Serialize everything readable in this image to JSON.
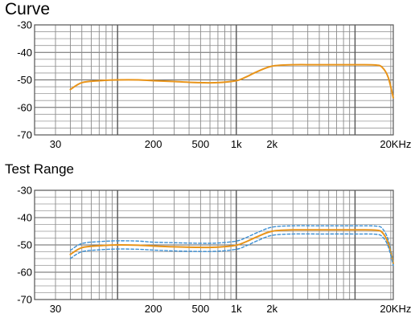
{
  "chart_data": [
    {
      "type": "line",
      "title": "Curve",
      "xscale": "log",
      "xlim": [
        20,
        21000
      ],
      "ylim": [
        -70,
        -30
      ],
      "yticks": [
        -30,
        -40,
        -50,
        -60,
        -70
      ],
      "ytick_labels": [
        "-30",
        "-40",
        "-50",
        "-60",
        "-70"
      ],
      "xticks": [
        30,
        200,
        500,
        1000,
        2000,
        20000
      ],
      "xtick_labels": [
        "30",
        "200",
        "500",
        "1k",
        "2k",
        "20KHz"
      ],
      "grid": true,
      "series": [
        {
          "color": "#e8941a",
          "style": "solid",
          "x": [
            40,
            50,
            70,
            100,
            150,
            200,
            300,
            500,
            700,
            1000,
            1200,
            1500,
            2000,
            3000,
            5000,
            10000,
            15000,
            17000,
            19000,
            21000
          ],
          "y": [
            -53.5,
            -51,
            -50.3,
            -50,
            -50,
            -50.3,
            -50.6,
            -51,
            -51,
            -50.3,
            -49,
            -47,
            -45,
            -44.5,
            -44.5,
            -44.5,
            -44.6,
            -45.5,
            -49,
            -56.5
          ]
        }
      ]
    },
    {
      "type": "line",
      "title": "Test Range",
      "xscale": "log",
      "xlim": [
        20,
        21000
      ],
      "ylim": [
        -70,
        -30
      ],
      "yticks": [
        -30,
        -40,
        -50,
        -60,
        -70
      ],
      "ytick_labels": [
        "-30",
        "-40",
        "-50",
        "-60",
        "-70"
      ],
      "xticks": [
        30,
        200,
        500,
        1000,
        2000,
        20000
      ],
      "xtick_labels": [
        "30",
        "200",
        "500",
        "1k",
        "2k",
        "20KHz"
      ],
      "grid": true,
      "series": [
        {
          "color": "#3b8fd4",
          "style": "dashed",
          "x": [
            40,
            50,
            70,
            100,
            150,
            200,
            300,
            500,
            700,
            1000,
            1200,
            1500,
            2000,
            3000,
            5000,
            10000,
            15000,
            17000,
            19000,
            21000
          ],
          "y": [
            -52,
            -49.5,
            -48.8,
            -48.5,
            -48.6,
            -49,
            -49.2,
            -49.4,
            -49.3,
            -48.6,
            -47.4,
            -45.5,
            -43.5,
            -43,
            -43,
            -43,
            -43.1,
            -44,
            -48,
            -56
          ]
        },
        {
          "color": "#e8941a",
          "style": "solid",
          "x": [
            40,
            50,
            70,
            100,
            150,
            200,
            300,
            500,
            700,
            1000,
            1200,
            1500,
            2000,
            3000,
            5000,
            10000,
            15000,
            17000,
            19000,
            21000
          ],
          "y": [
            -53.5,
            -51,
            -50.3,
            -50,
            -50.1,
            -50.4,
            -50.7,
            -50.9,
            -50.8,
            -50.1,
            -48.9,
            -47,
            -45,
            -44.5,
            -44.5,
            -44.5,
            -44.6,
            -45.5,
            -49.3,
            -56.8
          ]
        },
        {
          "color": "#3b8fd4",
          "style": "dashed",
          "x": [
            40,
            50,
            70,
            100,
            150,
            200,
            300,
            500,
            700,
            1000,
            1200,
            1500,
            2000,
            3000,
            5000,
            10000,
            15000,
            17000,
            19000,
            21000
          ],
          "y": [
            -55,
            -52.5,
            -51.8,
            -51.5,
            -51.6,
            -51.9,
            -52.2,
            -52.4,
            -52.3,
            -51.6,
            -50.4,
            -48.5,
            -46.5,
            -46,
            -46,
            -46,
            -46.1,
            -47,
            -50.5,
            -57.5
          ]
        }
      ]
    }
  ]
}
